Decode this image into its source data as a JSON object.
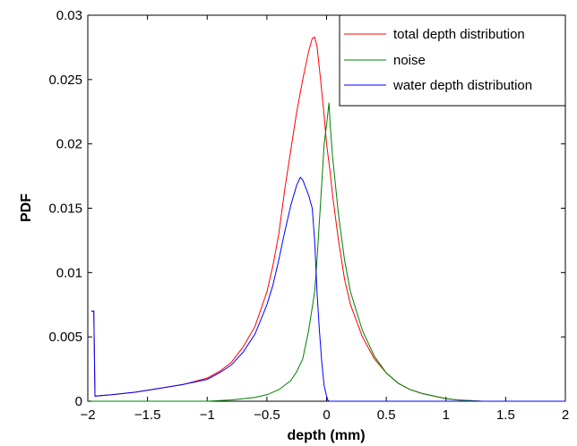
{
  "chart_data": {
    "type": "line",
    "title": "",
    "xlabel": "depth (mm)",
    "ylabel": "PDF",
    "xlim": [
      -2,
      2
    ],
    "ylim": [
      0,
      0.03
    ],
    "xticks": [
      -2,
      -1.5,
      -1,
      -0.5,
      0,
      0.5,
      1,
      1.5,
      2
    ],
    "xtick_labels": [
      "−2",
      "−1.5",
      "−1",
      "−0.5",
      "0",
      "0.5",
      "1",
      "1.5",
      "2"
    ],
    "yticks": [
      0,
      0.005,
      0.01,
      0.015,
      0.02,
      0.025,
      0.03
    ],
    "ytick_labels": [
      "0",
      "0.005",
      "0.01",
      "0.015",
      "0.02",
      "0.025",
      "0.03"
    ],
    "grid": false,
    "legend_position": "top-right",
    "series": [
      {
        "name": "total depth distribution",
        "color": "#ff0000",
        "x": [
          -1.97,
          -1.95,
          -1.94,
          -1.8,
          -1.6,
          -1.4,
          -1.2,
          -1.0,
          -0.9,
          -0.8,
          -0.7,
          -0.6,
          -0.5,
          -0.45,
          -0.4,
          -0.35,
          -0.3,
          -0.25,
          -0.2,
          -0.15,
          -0.12,
          -0.1,
          -0.08,
          -0.05,
          -0.02,
          0.0,
          0.03,
          0.05,
          0.1,
          0.15,
          0.2,
          0.3,
          0.4,
          0.5,
          0.6,
          0.7,
          0.8,
          0.9,
          1.0,
          1.1,
          1.2,
          1.3,
          1.5,
          2.0
        ],
        "y": [
          0.007,
          0.007,
          0.0004,
          0.0005,
          0.0007,
          0.001,
          0.0013,
          0.0018,
          0.0023,
          0.003,
          0.0042,
          0.0058,
          0.0085,
          0.0105,
          0.013,
          0.0165,
          0.0195,
          0.0225,
          0.025,
          0.0272,
          0.0282,
          0.0283,
          0.0276,
          0.025,
          0.0222,
          0.02,
          0.0178,
          0.016,
          0.0125,
          0.0095,
          0.0075,
          0.005,
          0.0033,
          0.0022,
          0.0014,
          0.0009,
          0.0006,
          0.0004,
          0.0002,
          0.0001,
          5e-05,
          0.0,
          0.0,
          0.0
        ]
      },
      {
        "name": "noise",
        "color": "#008000",
        "x": [
          -1.97,
          -1.0,
          -0.8,
          -0.6,
          -0.5,
          -0.4,
          -0.3,
          -0.25,
          -0.2,
          -0.15,
          -0.1,
          -0.08,
          -0.06,
          -0.04,
          -0.02,
          0.0,
          0.02,
          0.03,
          0.05,
          0.1,
          0.15,
          0.2,
          0.3,
          0.4,
          0.5,
          0.6,
          0.7,
          0.8,
          0.9,
          1.0,
          1.1,
          1.2,
          1.3,
          1.5,
          2.0
        ],
        "y": [
          0.0,
          0.0,
          0.0001,
          0.0003,
          0.0005,
          0.0009,
          0.0016,
          0.0023,
          0.0033,
          0.0055,
          0.0085,
          0.011,
          0.014,
          0.017,
          0.02,
          0.0215,
          0.0232,
          0.0215,
          0.019,
          0.0145,
          0.011,
          0.0085,
          0.0055,
          0.0035,
          0.0022,
          0.0014,
          0.0009,
          0.0006,
          0.0004,
          0.0002,
          0.0001,
          5e-05,
          0.0,
          0.0,
          0.0
        ]
      },
      {
        "name": "water depth distribution",
        "color": "#0000ff",
        "x": [
          -1.97,
          -1.95,
          -1.94,
          -1.8,
          -1.6,
          -1.4,
          -1.2,
          -1.0,
          -0.9,
          -0.8,
          -0.7,
          -0.6,
          -0.5,
          -0.45,
          -0.4,
          -0.35,
          -0.3,
          -0.25,
          -0.22,
          -0.2,
          -0.15,
          -0.12,
          -0.1,
          -0.08,
          -0.06,
          -0.04,
          -0.02,
          0.0,
          0.01,
          0.02,
          2.0
        ],
        "y": [
          0.007,
          0.007,
          0.0004,
          0.0005,
          0.0007,
          0.001,
          0.0013,
          0.0017,
          0.0022,
          0.0028,
          0.0038,
          0.0052,
          0.0075,
          0.009,
          0.011,
          0.0132,
          0.0152,
          0.0168,
          0.0174,
          0.0172,
          0.016,
          0.015,
          0.0125,
          0.0085,
          0.0055,
          0.003,
          0.0012,
          0.0004,
          0.0001,
          0.0,
          0.0
        ]
      }
    ]
  }
}
